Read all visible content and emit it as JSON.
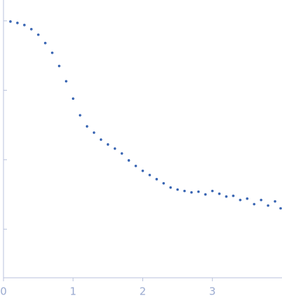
{
  "chart_data": {
    "type": "scatter",
    "color": "#3a66b3",
    "x": [
      0.1,
      0.2,
      0.3,
      0.4,
      0.5,
      0.6,
      0.7,
      0.8,
      0.9,
      1.0,
      1.1,
      1.2,
      1.3,
      1.4,
      1.5,
      1.6,
      1.7,
      1.8,
      1.9,
      2.0,
      2.1,
      2.2,
      2.3,
      2.4,
      2.5,
      2.6,
      2.7,
      2.8,
      2.9,
      3.0,
      3.1,
      3.2,
      3.3,
      3.4,
      3.5,
      3.6,
      3.7,
      3.8,
      3.9,
      3.98
    ],
    "values": [
      -0.01,
      -0.03,
      -0.06,
      -0.12,
      -0.2,
      -0.32,
      -0.46,
      -0.65,
      -0.87,
      -1.12,
      -1.36,
      -1.52,
      -1.61,
      -1.71,
      -1.78,
      -1.84,
      -1.91,
      -2.01,
      -2.09,
      -2.16,
      -2.22,
      -2.28,
      -2.34,
      -2.4,
      -2.43,
      -2.45,
      -2.47,
      -2.46,
      -2.5,
      -2.45,
      -2.49,
      -2.53,
      -2.52,
      -2.58,
      -2.56,
      -2.64,
      -2.58,
      -2.66,
      -2.6,
      -2.7
    ],
    "xlim": [
      0,
      4
    ],
    "xticks": [
      0,
      1,
      2,
      3
    ],
    "ylim": [
      -3.7,
      0.3
    ],
    "yticks": [
      0,
      -1,
      -2,
      -3
    ],
    "ytick_labels": false
  }
}
